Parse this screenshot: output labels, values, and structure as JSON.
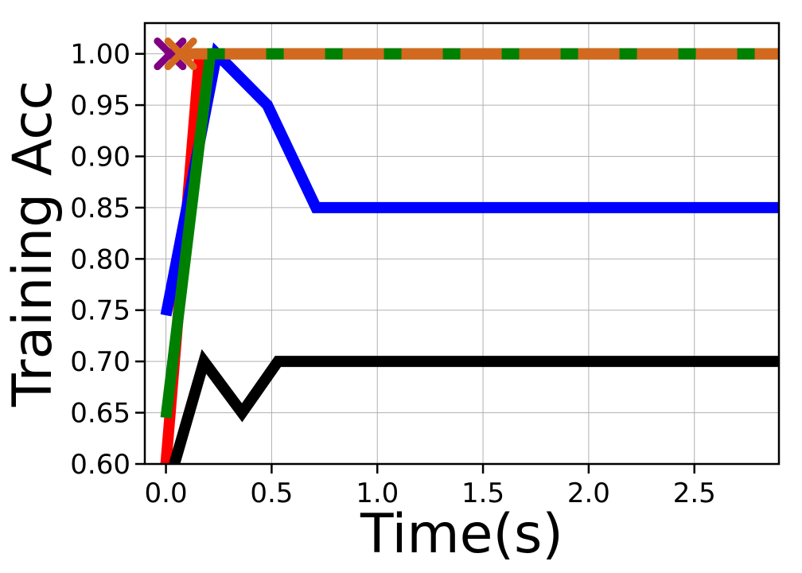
{
  "chart_data": {
    "type": "line",
    "title": "",
    "xlabel": "Time(s)",
    "ylabel": "Training Acc",
    "xlim": [
      -0.1,
      2.9
    ],
    "ylim": [
      0.6,
      1.03
    ],
    "xticks": [
      0.0,
      0.5,
      1.0,
      1.5,
      2.0,
      2.5
    ],
    "xtick_labels": [
      "0.0",
      "0.5",
      "1.0",
      "1.5",
      "2.0",
      "2.5"
    ],
    "yticks": [
      0.6,
      0.65,
      0.7,
      0.75,
      0.8,
      0.85,
      0.9,
      0.95,
      1.0
    ],
    "ytick_labels": [
      "0.60",
      "0.65",
      "0.70",
      "0.75",
      "0.80",
      "0.85",
      "0.90",
      "0.95",
      "1.00"
    ],
    "grid": true,
    "series": [
      {
        "color": "#ff0000",
        "style": "solid",
        "x": [
          0.0,
          0.16,
          2.9
        ],
        "y": [
          0.6,
          1.0,
          1.0
        ]
      },
      {
        "color": "#0000ff",
        "style": "solid",
        "x": [
          0.0,
          0.24,
          0.48,
          0.71,
          2.9
        ],
        "y": [
          0.745,
          1.0,
          0.95,
          0.85,
          0.85
        ]
      },
      {
        "color": "#000000",
        "style": "solid",
        "x": [
          0.04,
          0.18,
          0.36,
          0.53,
          2.9
        ],
        "y": [
          0.6,
          0.7,
          0.65,
          0.7,
          0.7
        ]
      },
      {
        "color": "#008000",
        "style": "solid",
        "x": [
          0.0,
          0.21,
          2.9
        ],
        "y": [
          0.645,
          1.0,
          1.0
        ]
      },
      {
        "color": "#008000",
        "style": "dashed",
        "x": [
          0.0,
          2.9
        ],
        "y": [
          1.0,
          1.0
        ]
      },
      {
        "color": "#d2691e",
        "style": "dashed",
        "x": [
          0.0,
          2.9
        ],
        "y": [
          1.0,
          1.0
        ]
      }
    ],
    "markers": [
      {
        "color": "#800080",
        "x": 0.02,
        "y": 1.0,
        "symbol": "x"
      },
      {
        "color": "#d2691e",
        "x": 0.07,
        "y": 1.0,
        "symbol": "x"
      }
    ]
  }
}
